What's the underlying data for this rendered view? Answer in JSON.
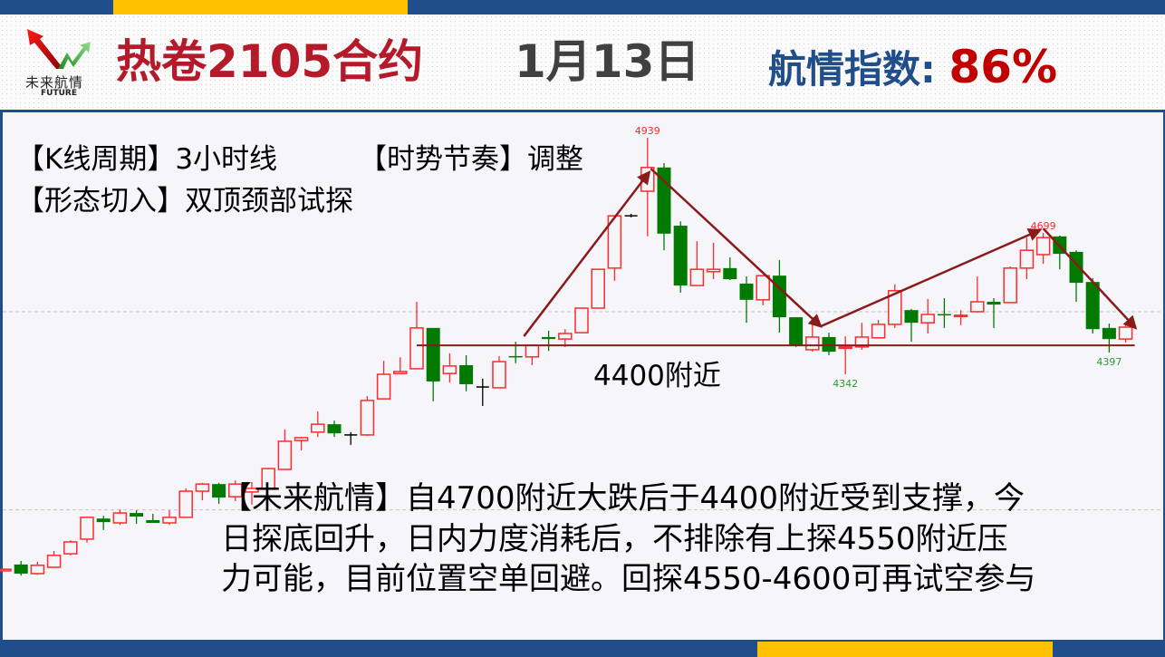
{
  "header": {
    "logo_text_cn": "未来航情",
    "logo_text_en": "FUTURE",
    "contract_title": "热卷2105合约",
    "date": "1月13日",
    "index_label": "航情指数:",
    "index_value": "86%"
  },
  "notes": {
    "period": "【K线周期】3小时线",
    "rhythm": "【时势节奏】调整",
    "pattern": "【形态切入】双顶颈部试探",
    "support_label": "4400附近",
    "commentary_lines": [
      "【未来航情】自4700附近大跌后于4400附近受到支撑，今",
      "日探底回升，日内力度消耗后，不排除有上探4550附近压",
      "力可能，目前位置空单回避。回探4550-4600可再试空参与"
    ]
  },
  "colors": {
    "navy": "#1f4e8a",
    "yellow": "#ffc000",
    "up": "#ff2a2a",
    "down": "#007a00",
    "doji": "#000000",
    "annotation": "#8b1a1a",
    "title_red": "#b51a2a"
  },
  "chart_data": {
    "type": "candlestick",
    "interval": "3小时",
    "grid": "dashed horizontal",
    "gridlines": [
      4000,
      4500
    ],
    "ylim": [
      3830,
      4960
    ],
    "candles_ohlc": [
      [
        3846,
        3852,
        3844,
        3850
      ],
      [
        3862,
        3871,
        3834,
        3839
      ],
      [
        3839,
        3869,
        3836,
        3860
      ],
      [
        3855,
        3896,
        3855,
        3885
      ],
      [
        3889,
        3923,
        3885,
        3919
      ],
      [
        3926,
        3981,
        3917,
        3981
      ],
      [
        3978,
        3985,
        3949,
        3969
      ],
      [
        3967,
        4001,
        3962,
        3992
      ],
      [
        3992,
        3999,
        3965,
        3983
      ],
      [
        3974,
        3990,
        3967,
        3967
      ],
      [
        3967,
        3999,
        3962,
        3981
      ],
      [
        3981,
        4054,
        3981,
        4047
      ],
      [
        4047,
        4068,
        4024,
        4065
      ],
      [
        4065,
        4068,
        4015,
        4031
      ],
      [
        4033,
        4074,
        4022,
        4065
      ],
      [
        4045,
        4070,
        4013,
        4054
      ],
      [
        4052,
        4106,
        4052,
        4104
      ],
      [
        4102,
        4203,
        4102,
        4173
      ],
      [
        4175,
        4184,
        4150,
        4182
      ],
      [
        4196,
        4248,
        4184,
        4216
      ],
      [
        4216,
        4225,
        4184,
        4193
      ],
      [
        4189,
        4196,
        4164,
        4189
      ],
      [
        4189,
        4287,
        4187,
        4276
      ],
      [
        4280,
        4376,
        4280,
        4342
      ],
      [
        4344,
        4385,
        4342,
        4349
      ],
      [
        4356,
        4525,
        4356,
        4459
      ],
      [
        4459,
        4459,
        4274,
        4324
      ],
      [
        4344,
        4395,
        4321,
        4363
      ],
      [
        4365,
        4390,
        4299,
        4317
      ],
      [
        4310,
        4331,
        4262,
        4310
      ],
      [
        4308,
        4388,
        4308,
        4374
      ],
      [
        4388,
        4424,
        4370,
        4386
      ],
      [
        4386,
        4417,
        4365,
        4415
      ],
      [
        4436,
        4452,
        4401,
        4431
      ],
      [
        4431,
        4456,
        4411,
        4445
      ],
      [
        4447,
        4509,
        4447,
        4509
      ],
      [
        4509,
        4607,
        4509,
        4607
      ],
      [
        4610,
        4742,
        4578,
        4742
      ],
      [
        4742,
        4747,
        4738,
        4742
      ],
      [
        4804,
        4939,
        4690,
        4864
      ],
      [
        4864,
        4875,
        4655,
        4697
      ],
      [
        4717,
        4728,
        4548,
        4566
      ],
      [
        4566,
        4678,
        4566,
        4607
      ],
      [
        4601,
        4674,
        4582,
        4607
      ],
      [
        4610,
        4637,
        4580,
        4582
      ],
      [
        4571,
        4589,
        4472,
        4530
      ],
      [
        4530,
        4591,
        4516,
        4591
      ],
      [
        4591,
        4630,
        4447,
        4486
      ],
      [
        4486,
        4486,
        4411,
        4413
      ],
      [
        4404,
        4486,
        4399,
        4436
      ],
      [
        4436,
        4447,
        4390,
        4399
      ],
      [
        4410,
        4438,
        4342,
        4411
      ],
      [
        4411,
        4472,
        4404,
        4436
      ],
      [
        4434,
        4479,
        4434,
        4468
      ],
      [
        4468,
        4569,
        4459,
        4553
      ],
      [
        4504,
        4507,
        4424,
        4472
      ],
      [
        4472,
        4532,
        4445,
        4493
      ],
      [
        4494,
        4534,
        4459,
        4493
      ],
      [
        4490,
        4504,
        4466,
        4491
      ],
      [
        4500,
        4589,
        4498,
        4525
      ],
      [
        4525,
        4534,
        4459,
        4518
      ],
      [
        4523,
        4614,
        4523,
        4610
      ],
      [
        4610,
        4687,
        4582,
        4655
      ],
      [
        4644,
        4699,
        4621,
        4687
      ],
      [
        4690,
        4692,
        4607,
        4646
      ],
      [
        4651,
        4655,
        4525,
        4573
      ],
      [
        4575,
        4585,
        4445,
        4456
      ],
      [
        4459,
        4470,
        4397,
        4431
      ],
      [
        4431,
        4470,
        4422,
        4461
      ]
    ],
    "point_labels": [
      {
        "text": "4939",
        "candle": 40,
        "price": 4939,
        "color": "#ff2a2a"
      },
      {
        "text": "4699",
        "candle": 64,
        "price": 4699,
        "color": "#ff2a2a"
      },
      {
        "text": "4342",
        "candle": 52,
        "price": 4342,
        "color": "#2e9a2e"
      },
      {
        "text": "4397",
        "candle": 68,
        "price": 4397,
        "color": "#2e9a2e"
      }
    ],
    "support_line": {
      "price": 4415,
      "from_candle": 26,
      "to_candle": 69
    },
    "trend_arrows": [
      {
        "from": [
          32.5,
          4438
        ],
        "to": [
          40.1,
          4852
        ]
      },
      {
        "from": [
          40.2,
          4861
        ],
        "to": [
          50.5,
          4463
        ]
      },
      {
        "from": [
          50.5,
          4463
        ],
        "to": [
          63.8,
          4706
        ]
      },
      {
        "from": [
          64.0,
          4710
        ],
        "to": [
          69.6,
          4459
        ]
      }
    ]
  }
}
